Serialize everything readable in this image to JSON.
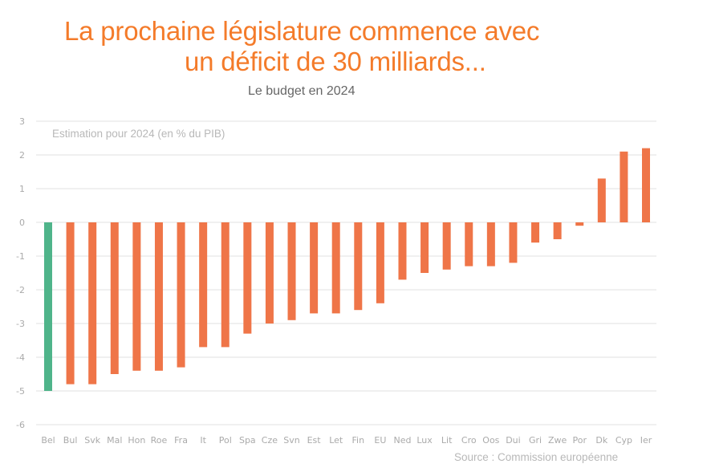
{
  "header": {
    "title_line1": "La prochaine législature commence avec",
    "title_line2": "un déficit de 30 milliards...",
    "subtitle": "Le budget en 2024"
  },
  "annotation": "Estimation pour 2024 (en % du PIB)",
  "source": "Source : Commission européenne",
  "chart_data": {
    "type": "bar",
    "title": "Le budget en 2024",
    "subtitle": "Estimation pour 2024 (en % du PIB)",
    "xlabel": "",
    "ylabel": "",
    "ylim": [
      -6,
      3
    ],
    "yticks": [
      3,
      2,
      1,
      0,
      -1,
      -2,
      -3,
      -4,
      -5,
      -6
    ],
    "grid": true,
    "categories": [
      "Bel",
      "Bul",
      "Svk",
      "Mal",
      "Hon",
      "Roe",
      "Fra",
      "It",
      "Pol",
      "Spa",
      "Cze",
      "Svn",
      "Est",
      "Let",
      "Fin",
      "EU",
      "Ned",
      "Lux",
      "Lit",
      "Cro",
      "Oos",
      "Dui",
      "Gri",
      "Zwe",
      "Por",
      "Dk",
      "Cyp",
      "Ier"
    ],
    "values": [
      -5.0,
      -4.8,
      -4.8,
      -4.5,
      -4.4,
      -4.4,
      -4.3,
      -3.7,
      -3.7,
      -3.3,
      -3.0,
      -2.9,
      -2.7,
      -2.7,
      -2.6,
      -2.4,
      -1.7,
      -1.5,
      -1.4,
      -1.3,
      -1.3,
      -1.2,
      -0.6,
      -0.5,
      -0.1,
      1.3,
      2.1,
      2.2
    ],
    "highlight": "Bel",
    "colors": {
      "default": "#ef7548",
      "highlight": "#4fb48a",
      "grid": "#ececec",
      "title": "#f47b2a"
    },
    "source": "Source : Commission européenne"
  }
}
